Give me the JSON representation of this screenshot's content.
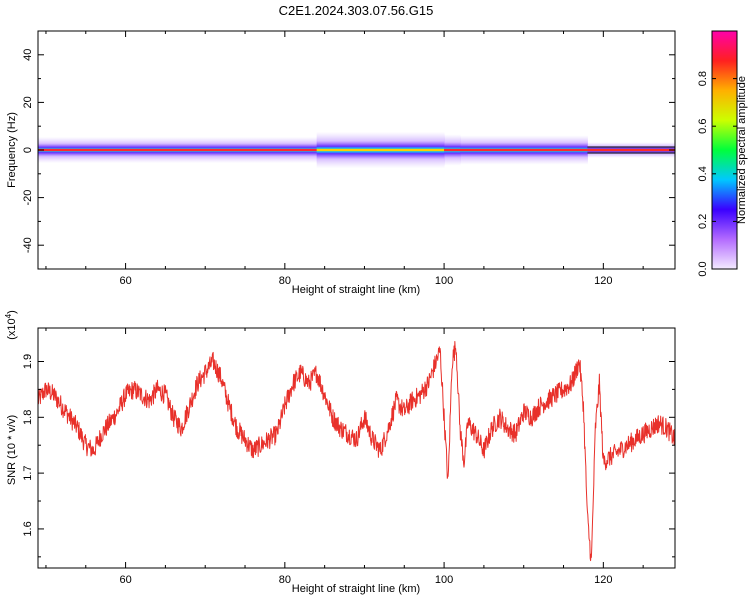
{
  "page": {
    "title": "C2E1.2024.303.07.56.G15"
  },
  "chart_data": [
    {
      "type": "heatmap",
      "xlabel": "Height of straight line (km)",
      "ylabel": "Frequency (Hz)",
      "xlim": [
        49,
        129
      ],
      "ylim": [
        -50,
        50
      ],
      "xticks": [
        60,
        80,
        100,
        120
      ],
      "yticks": [
        40,
        20,
        0,
        -20,
        -40
      ],
      "band": {
        "center_frequency": 0,
        "segments": [
          {
            "x": [
              49,
              84
            ],
            "half_width": 2.5,
            "core": "high"
          },
          {
            "x": [
              84,
              100
            ],
            "half_width": 3.5,
            "core": "medium"
          },
          {
            "x": [
              100,
              102
            ],
            "half_width": 3.0,
            "core": "high"
          },
          {
            "x": [
              102,
              118
            ],
            "half_width": 2.8,
            "core": "high"
          },
          {
            "x": [
              118,
              129
            ],
            "half_width": 1.5,
            "core": "high"
          }
        ]
      },
      "colorbar": {
        "label": "Normalized spectral amplitude",
        "range": [
          0,
          1
        ],
        "ticks": [
          "0.0",
          "0.2",
          "0.4",
          "0.6",
          "0.8"
        ],
        "colors": [
          "#f4eaff",
          "#b36bff",
          "#3a00ff",
          "#00c8ff",
          "#00ff3c",
          "#ccff00",
          "#ffb000",
          "#ff2020",
          "#ff00aa"
        ]
      }
    },
    {
      "type": "line",
      "xlabel": "Height of straight line (km)",
      "ylabel": "SNR (10 * v/v)",
      "y_multiplier": "(x10",
      "y_multiplier_exp": "4",
      "y_multiplier_close": ")",
      "xlim": [
        49,
        129
      ],
      "ylim": [
        1.53,
        1.96
      ],
      "xticks": [
        60,
        80,
        100,
        120
      ],
      "yticks": [
        "1.9",
        "1.8",
        "1.7",
        "1.6"
      ],
      "yticks_values": [
        1.9,
        1.8,
        1.7,
        1.6
      ],
      "color": "#e8302a",
      "x": [
        49,
        50,
        51,
        52,
        53,
        54,
        55,
        56,
        57,
        58,
        59,
        60,
        61,
        62,
        63,
        64,
        65,
        66,
        67,
        68,
        69,
        70,
        71,
        72,
        73,
        74,
        75,
        76,
        77,
        78,
        79,
        80,
        81,
        82,
        83,
        84,
        85,
        86,
        87,
        88,
        89,
        90,
        91,
        92,
        93,
        94,
        95,
        96,
        97,
        98,
        99,
        99.5,
        100,
        100.5,
        101,
        101.5,
        102,
        102.5,
        103,
        104,
        105,
        106,
        107,
        108,
        109,
        110,
        111,
        112,
        113,
        114,
        115,
        116,
        117,
        117.5,
        118,
        118.5,
        119,
        119.5,
        120,
        121,
        122,
        123,
        124,
        125,
        126,
        127,
        128,
        129
      ],
      "y": [
        1.83,
        1.85,
        1.84,
        1.82,
        1.8,
        1.78,
        1.75,
        1.74,
        1.77,
        1.79,
        1.81,
        1.84,
        1.85,
        1.84,
        1.83,
        1.85,
        1.84,
        1.8,
        1.78,
        1.82,
        1.86,
        1.88,
        1.9,
        1.87,
        1.82,
        1.78,
        1.76,
        1.74,
        1.75,
        1.76,
        1.77,
        1.82,
        1.86,
        1.88,
        1.86,
        1.88,
        1.84,
        1.8,
        1.78,
        1.77,
        1.76,
        1.8,
        1.76,
        1.74,
        1.78,
        1.83,
        1.81,
        1.83,
        1.84,
        1.86,
        1.9,
        1.92,
        1.8,
        1.68,
        1.9,
        1.93,
        1.78,
        1.72,
        1.79,
        1.77,
        1.74,
        1.78,
        1.8,
        1.78,
        1.77,
        1.81,
        1.8,
        1.82,
        1.83,
        1.84,
        1.85,
        1.86,
        1.9,
        1.82,
        1.62,
        1.54,
        1.78,
        1.86,
        1.72,
        1.73,
        1.74,
        1.75,
        1.76,
        1.77,
        1.78,
        1.79,
        1.78,
        1.76
      ]
    }
  ]
}
